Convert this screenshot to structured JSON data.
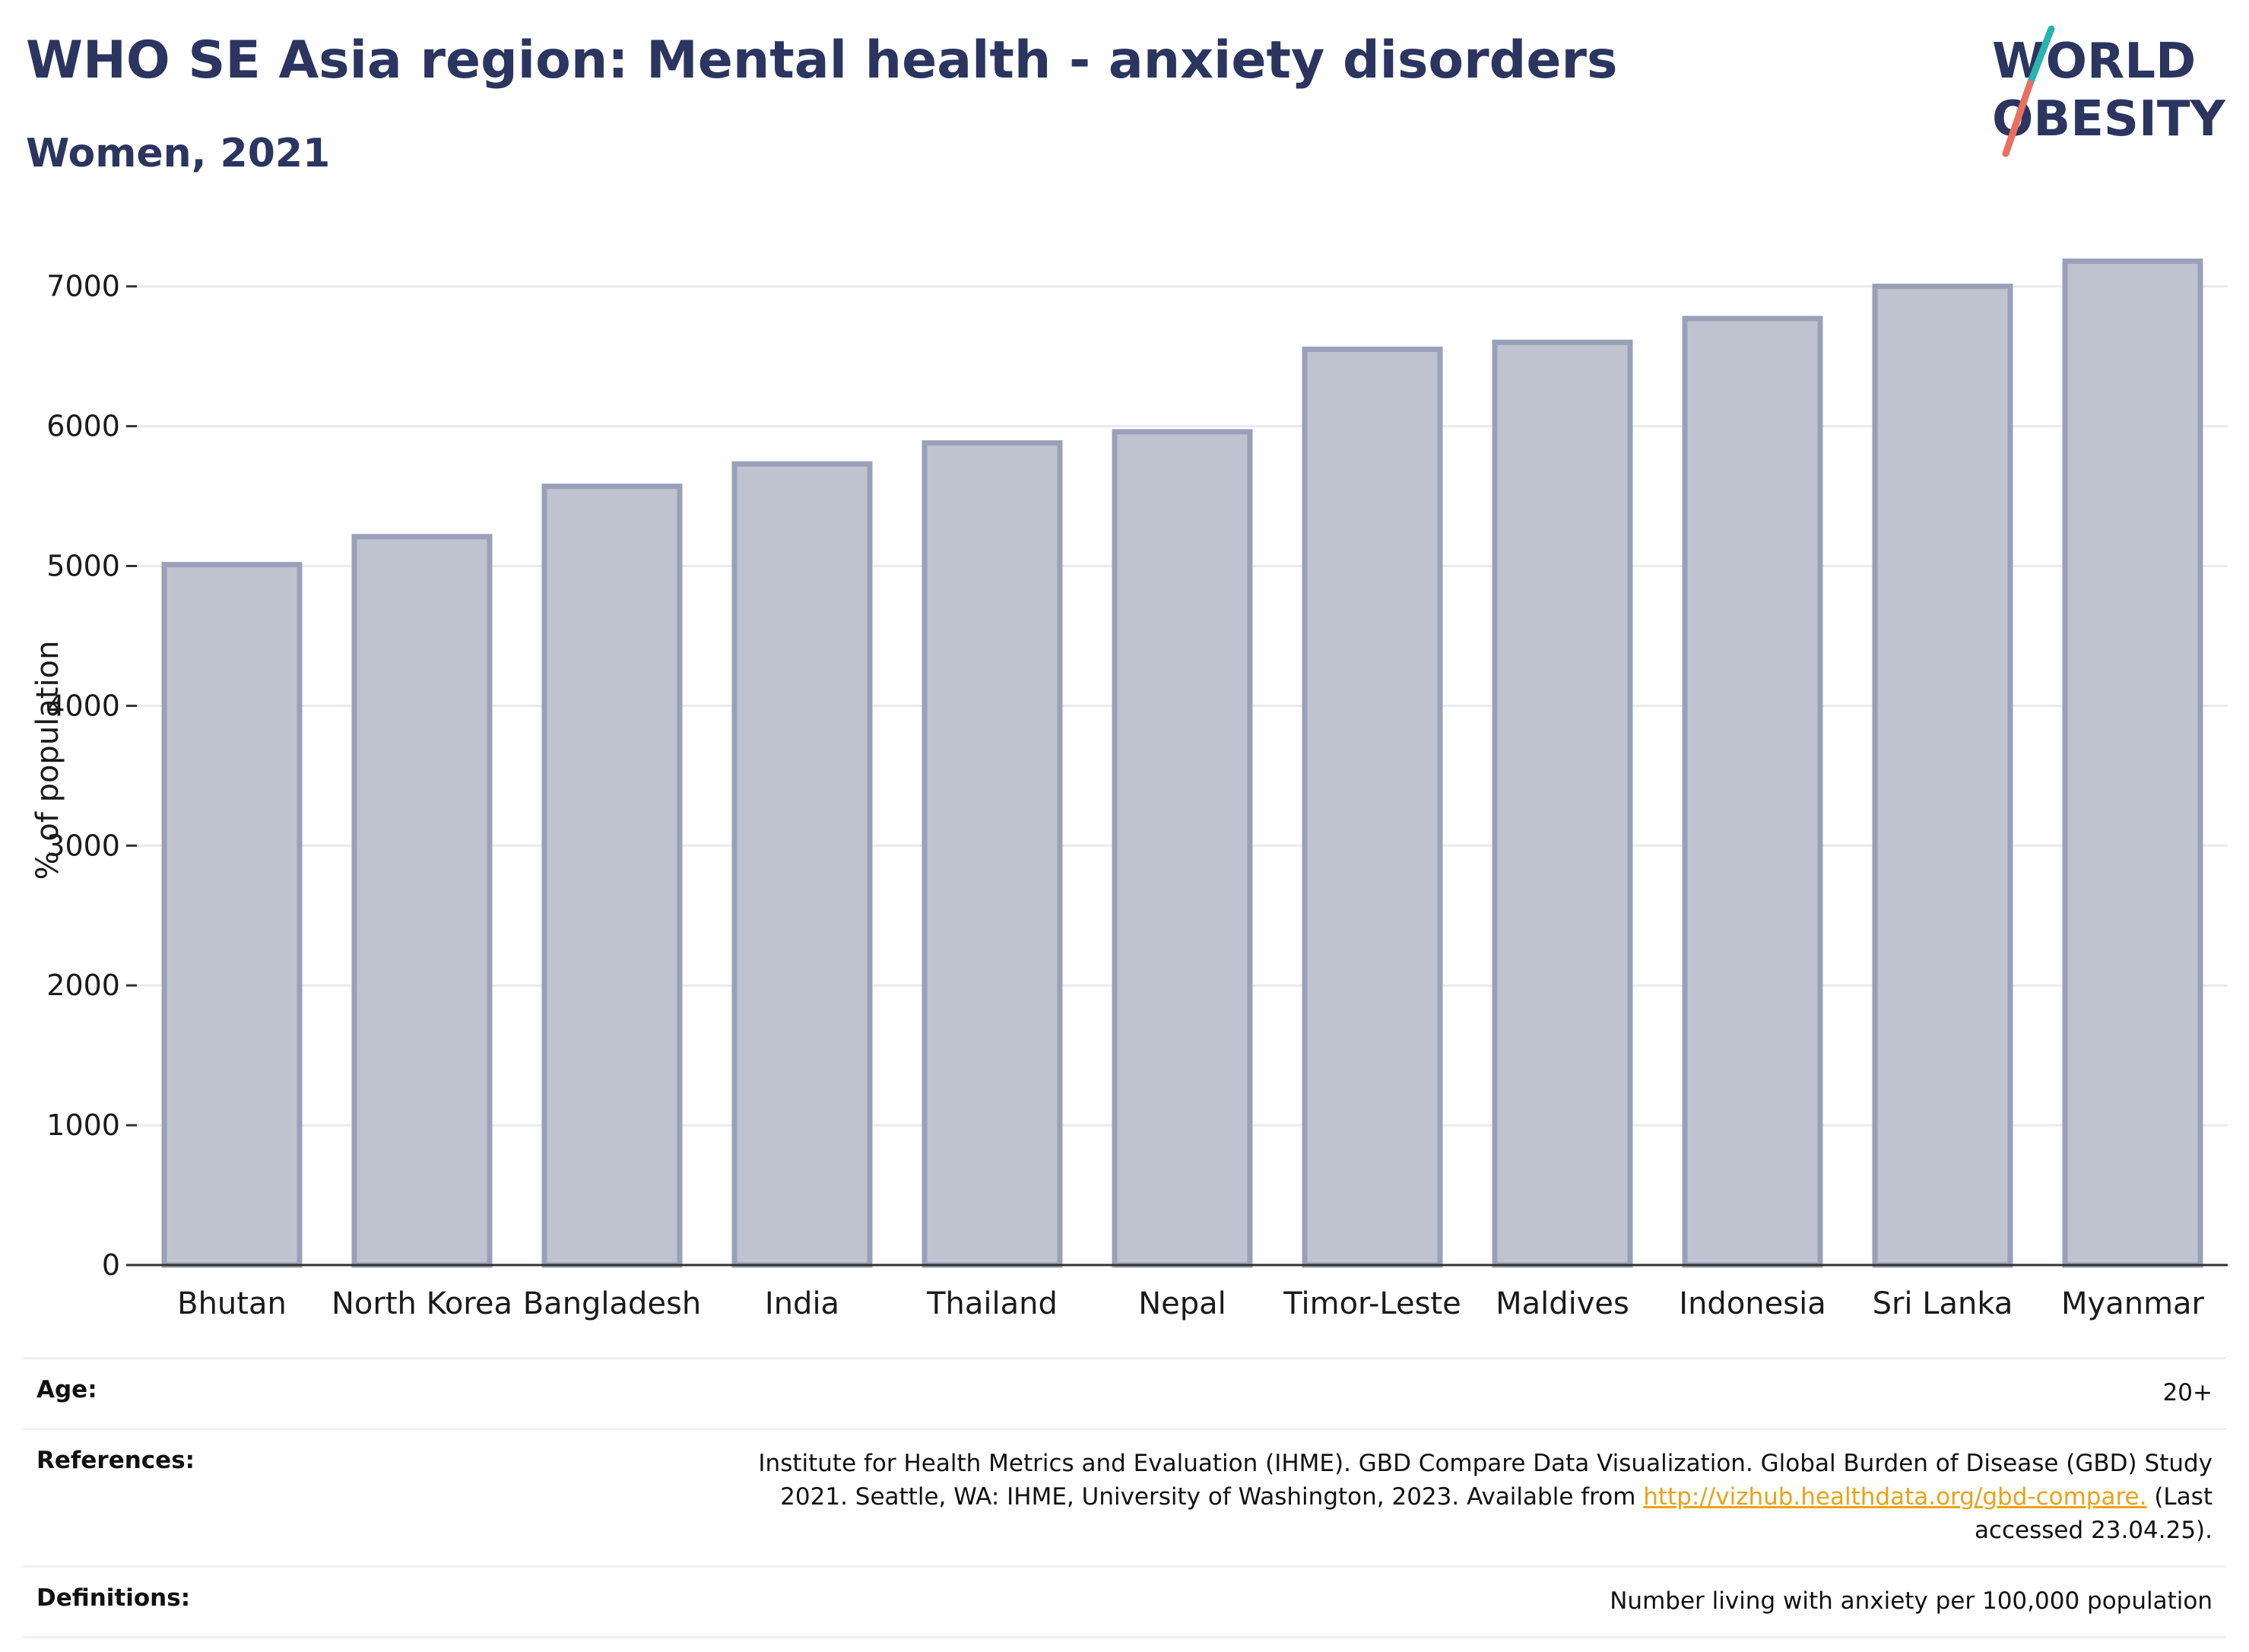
{
  "header": {
    "title": "WHO SE Asia region: Mental health - anxiety disorders",
    "subtitle": "Women, 2021"
  },
  "logo": {
    "line1": "WORLD",
    "line2": "OBESITY",
    "colors": {
      "text": "#2b3560",
      "slash_top": "#2ab3b1",
      "slash_bottom": "#e8705f"
    }
  },
  "chart_data": {
    "type": "bar",
    "title": "WHO SE Asia region: Mental health - anxiety disorders",
    "subtitle": "Women, 2021",
    "xlabel": "",
    "ylabel": "% of population",
    "ylim": [
      0,
      7200
    ],
    "yticks": [
      0,
      1000,
      2000,
      3000,
      4000,
      5000,
      6000,
      7000
    ],
    "grid": true,
    "categories": [
      "Bhutan",
      "North Korea",
      "Bangladesh",
      "India",
      "Thailand",
      "Nepal",
      "Timor-Leste",
      "Maldives",
      "Indonesia",
      "Sri Lanka",
      "Myanmar"
    ],
    "values": [
      5010,
      5210,
      5570,
      5730,
      5880,
      5960,
      6550,
      6600,
      6770,
      7000,
      7180
    ],
    "colors": {
      "bar_fill": "#bfc3d0",
      "bar_stroke": "#9aa0b8",
      "grid": "#e9eaf0",
      "axis": "#333333"
    }
  },
  "notes": {
    "age": {
      "label": "Age:",
      "value": "20+"
    },
    "references": {
      "label": "References:",
      "text_before": "Institute for Health Metrics and Evaluation (IHME). GBD Compare Data Visualization. Global Burden of Disease (GBD) Study 2021. Seattle, WA: IHME, University of Washington, 2023. Available from ",
      "link": "http://vizhub.healthdata.org/gbd-compare.",
      "text_after": " (Last accessed 23.04.25)."
    },
    "definitions": {
      "label": "Definitions:",
      "value": "Number living with anxiety per 100,000 population"
    }
  }
}
